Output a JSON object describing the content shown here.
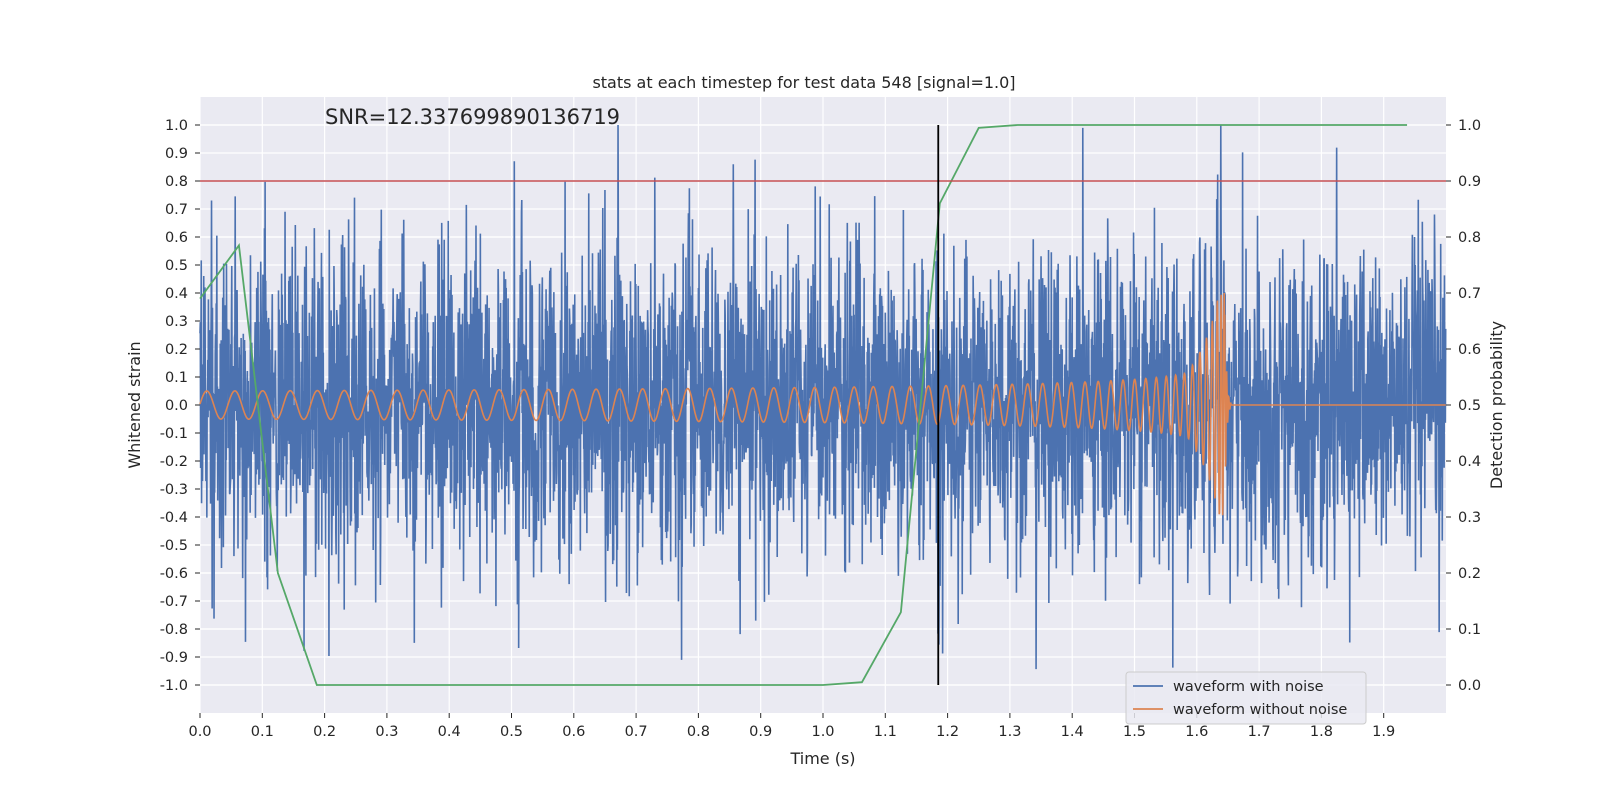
{
  "chart_data": {
    "type": "line",
    "title": "stats at each timestep for test data 548 [signal=1.0]",
    "annotation": "SNR=12.337699890136719",
    "xlabel": "Time (s)",
    "ylabel": "Whitened strain",
    "y2label": "Detection probability",
    "xlim": [
      0.0,
      2.0
    ],
    "ylim": [
      -1.1,
      1.1
    ],
    "y2lim": [
      -0.05,
      1.05
    ],
    "x_ticks": [
      "0.0",
      "0.1",
      "0.2",
      "0.3",
      "0.4",
      "0.5",
      "0.6",
      "0.7",
      "0.8",
      "0.9",
      "1.0",
      "1.1",
      "1.2",
      "1.3",
      "1.4",
      "1.5",
      "1.6",
      "1.7",
      "1.8",
      "1.9"
    ],
    "y_ticks": [
      "1.0",
      "0.9",
      "0.8",
      "0.7",
      "0.6",
      "0.5",
      "0.4",
      "0.3",
      "0.2",
      "0.1",
      "0.0",
      "-0.1",
      "-0.2",
      "-0.3",
      "-0.4",
      "-0.5",
      "-0.6",
      "-0.7",
      "-0.8",
      "-0.9",
      "-1.0"
    ],
    "y2_ticks": [
      "1.0",
      "0.9",
      "0.8",
      "0.7",
      "0.6",
      "0.5",
      "0.4",
      "0.3",
      "0.2",
      "0.1",
      "0.0"
    ],
    "grid": true,
    "legend_position": "lower right",
    "series": [
      {
        "name": "waveform with noise",
        "color": "#4c72b0",
        "axis": "left",
        "description": "dense whitened strain with noise, sampled 2048 Hz",
        "amplitude_typical": 0.3,
        "max_value": 1.0,
        "min_value": -0.97
      },
      {
        "name": "waveform without noise",
        "color": "#dd8452",
        "axis": "left",
        "description": "chirp signal; amplitude grows to merger near t=1.64 s then zero",
        "start_frequency": 22,
        "merger_time": 1.645,
        "start_amplitude": 0.05,
        "peak_amplitude": 0.4
      },
      {
        "name": "Detection probability",
        "color": "#55a868",
        "axis": "right",
        "x": [
          0.0,
          0.0625,
          0.125,
          0.1875,
          0.25,
          0.3125,
          0.375,
          0.4375,
          0.5,
          0.5625,
          0.625,
          0.6875,
          0.75,
          0.8125,
          0.875,
          0.9375,
          1.0,
          1.0625,
          1.125,
          1.1875,
          1.25,
          1.3125,
          1.375,
          1.4375,
          1.5,
          1.5625,
          1.625,
          1.6875,
          1.75,
          1.8125,
          1.875,
          1.9375
        ],
        "values": [
          0.69,
          0.785,
          0.2,
          0.0,
          0.0,
          0.0,
          0.0,
          0.0,
          0.0,
          0.0,
          0.0,
          0.0,
          0.0,
          0.0,
          0.0,
          0.0,
          0.0,
          0.005,
          0.13,
          0.86,
          0.995,
          1.0,
          1.0,
          1.0,
          1.0,
          1.0,
          1.0,
          1.0,
          1.0,
          1.0,
          1.0,
          1.0
        ]
      }
    ],
    "threshold_line": {
      "value": 0.9,
      "axis": "right",
      "color": "#c44e52"
    },
    "vertical_marker": {
      "x": 1.185,
      "y2_range": [
        0.0,
        1.0
      ],
      "color": "#000000"
    }
  }
}
